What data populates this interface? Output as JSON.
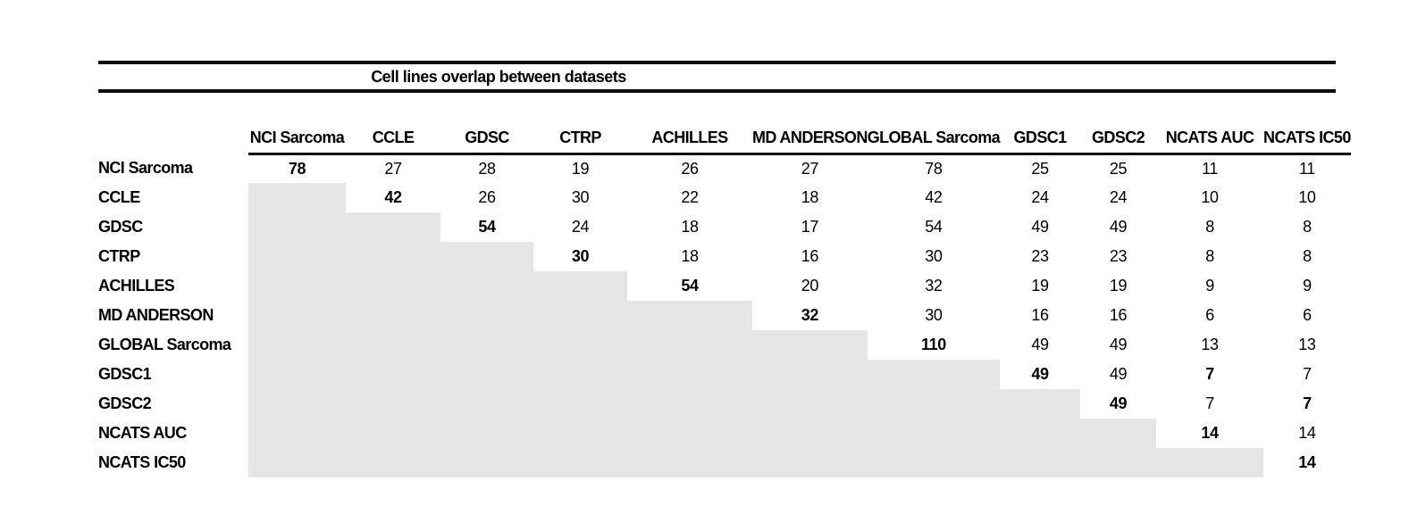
{
  "colors": {
    "shade": "#e7e6e6",
    "rule": "#0d0d0d",
    "text": "#000000",
    "background": "#ffffff"
  },
  "chart_data": {
    "type": "table",
    "title": "Cell lines overlap between datasets",
    "description_visible": "Upper-triangular matrix of pairwise cell line overlap counts; diagonal values bold; lower triangle shaded gray",
    "columns": [
      "NCI Sarcoma",
      "CCLE",
      "GDSC",
      "CTRP",
      "ACHILLES",
      "MD ANDERSON",
      "GLOBAL Sarcoma",
      "GDSC1",
      "GDSC2",
      "NCATS AUC",
      "NCATS IC50"
    ],
    "rows": [
      {
        "label": "NCI Sarcoma",
        "values": [
          78,
          27,
          28,
          19,
          26,
          27,
          78,
          25,
          25,
          11,
          11
        ]
      },
      {
        "label": "CCLE",
        "values": [
          null,
          42,
          26,
          30,
          22,
          18,
          42,
          24,
          24,
          10,
          10
        ]
      },
      {
        "label": "GDSC",
        "values": [
          null,
          null,
          54,
          24,
          18,
          17,
          54,
          49,
          49,
          8,
          8
        ]
      },
      {
        "label": "CTRP",
        "values": [
          null,
          null,
          null,
          30,
          18,
          16,
          30,
          23,
          23,
          8,
          8
        ]
      },
      {
        "label": "ACHILLES",
        "values": [
          null,
          null,
          null,
          null,
          54,
          20,
          32,
          19,
          19,
          9,
          9
        ]
      },
      {
        "label": "MD ANDERSON",
        "values": [
          null,
          null,
          null,
          null,
          null,
          32,
          30,
          16,
          16,
          6,
          6
        ]
      },
      {
        "label": "GLOBAL Sarcoma",
        "values": [
          null,
          null,
          null,
          null,
          null,
          null,
          110,
          49,
          49,
          13,
          13
        ]
      },
      {
        "label": "GDSC1",
        "values": [
          null,
          null,
          null,
          null,
          null,
          null,
          null,
          49,
          49,
          7,
          7
        ]
      },
      {
        "label": "GDSC2",
        "values": [
          null,
          null,
          null,
          null,
          null,
          null,
          null,
          null,
          49,
          7,
          7
        ]
      },
      {
        "label": "NCATS AUC",
        "values": [
          null,
          null,
          null,
          null,
          null,
          null,
          null,
          null,
          null,
          14,
          14
        ]
      },
      {
        "label": "NCATS IC50",
        "values": [
          null,
          null,
          null,
          null,
          null,
          null,
          null,
          null,
          null,
          null,
          14
        ]
      }
    ],
    "bold_cells": [
      [
        0,
        0
      ],
      [
        1,
        1
      ],
      [
        2,
        2
      ],
      [
        3,
        3
      ],
      [
        4,
        4
      ],
      [
        5,
        5
      ],
      [
        6,
        6
      ],
      [
        7,
        7
      ],
      [
        7,
        9
      ],
      [
        8,
        8
      ],
      [
        8,
        10
      ],
      [
        9,
        9
      ],
      [
        10,
        10
      ]
    ],
    "shading": "lower-triangle",
    "grid": false,
    "legend_position": "none"
  }
}
